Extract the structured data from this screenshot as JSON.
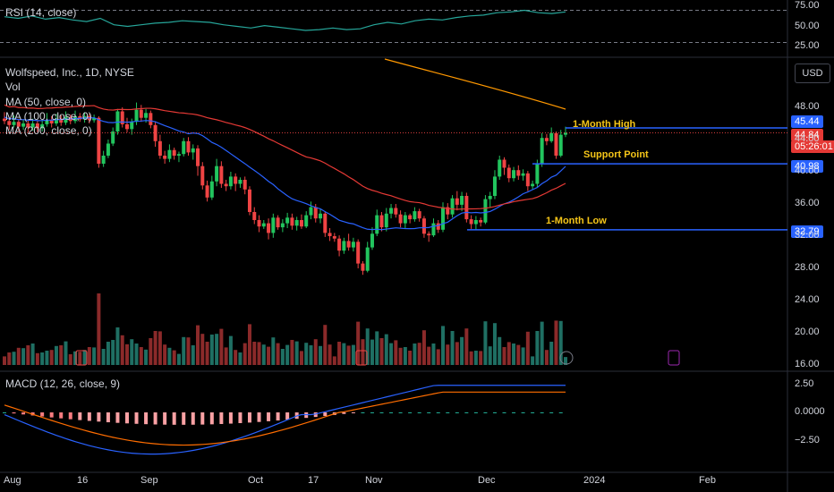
{
  "legend": {
    "rsi": "RSI (14, close)",
    "symbol": "Wolfspeed, Inc., 1D, NYSE",
    "vol": "Vol",
    "ma50": "MA (50, close, 0)",
    "ma100": "MA (100, close, 0)",
    "ma200": "MA (200, close, 0)",
    "macd": "MACD (12, 26, close, 9)"
  },
  "currency": "USD",
  "annotations": {
    "high": "1-Month High",
    "support": "Support Point",
    "low": "1-Month Low"
  },
  "tags": {
    "high": "45.44",
    "last": "44.84",
    "countdown": "05:26:01",
    "support": "40.98",
    "low": "32.79"
  },
  "colors": {
    "up": "#22c55e",
    "down": "#ef4444",
    "ma50": "#2962ff",
    "ma100": "#e53935",
    "ma200": "#ff9800",
    "rsi": "#26a69a",
    "level": "#2962ff",
    "annotation": "#f5c518"
  },
  "chart_data": {
    "type": "candlestick",
    "title": "Wolfspeed, Inc., 1D, NYSE",
    "x_ticks": [
      "Aug",
      "16",
      "Sep",
      "Oct",
      "17",
      "Nov",
      "Dec",
      "2024",
      "Feb"
    ],
    "price_ticks": [
      "48.00",
      "44.00",
      "40.00",
      "36.00",
      "32.00",
      "28.00",
      "24.00",
      "20.00",
      "16.00"
    ],
    "price_range": [
      16,
      52
    ],
    "rsi_ticks": [
      "75.00",
      "50.00",
      "25.00"
    ],
    "macd_ticks": [
      "2.50",
      "0.0000",
      "−2.50"
    ],
    "levels": {
      "month_high": 45.44,
      "support": 40.98,
      "month_low": 32.79,
      "last": 44.84
    },
    "candles": [
      [
        46.6,
        46.3,
        47.4,
        45.9
      ],
      [
        46.3,
        45.8,
        46.8,
        45.2
      ],
      [
        45.8,
        46.2,
        47.0,
        45.5
      ],
      [
        46.2,
        45.6,
        46.6,
        45.1
      ],
      [
        45.6,
        46.0,
        46.5,
        45.2
      ],
      [
        46.0,
        45.5,
        46.4,
        44.9
      ],
      [
        45.5,
        46.0,
        46.6,
        45.1
      ],
      [
        46.0,
        45.4,
        46.3,
        44.9
      ],
      [
        45.4,
        45.9,
        46.5,
        45.0
      ],
      [
        45.9,
        46.4,
        47.3,
        45.6
      ],
      [
        46.4,
        46.0,
        46.9,
        45.5
      ],
      [
        46.0,
        46.6,
        47.2,
        45.7
      ],
      [
        46.6,
        46.1,
        47.0,
        45.7
      ],
      [
        46.1,
        46.8,
        47.5,
        45.8
      ],
      [
        46.8,
        46.3,
        47.1,
        45.9
      ],
      [
        46.3,
        46.9,
        47.6,
        46.0
      ],
      [
        46.9,
        46.5,
        47.3,
        46.2
      ],
      [
        46.5,
        46.9,
        47.4,
        46.1
      ],
      [
        46.9,
        46.4,
        47.2,
        46.0
      ],
      [
        46.4,
        46.7,
        47.1,
        46.1
      ],
      [
        46.7,
        41.0,
        46.9,
        40.5
      ],
      [
        41.0,
        42.0,
        42.6,
        40.6
      ],
      [
        42.0,
        43.5,
        44.0,
        41.7
      ],
      [
        43.5,
        45.0,
        45.5,
        43.2
      ],
      [
        45.0,
        47.5,
        47.8,
        44.6
      ],
      [
        47.5,
        45.9,
        48.0,
        45.5
      ],
      [
        45.9,
        45.3,
        46.7,
        44.9
      ],
      [
        45.3,
        46.2,
        46.6,
        44.6
      ],
      [
        46.2,
        47.7,
        48.6,
        45.8
      ],
      [
        47.7,
        46.7,
        48.3,
        46.2
      ],
      [
        46.7,
        47.3,
        47.8,
        46.1
      ],
      [
        47.3,
        45.8,
        47.6,
        45.4
      ],
      [
        45.8,
        43.8,
        46.2,
        43.1
      ],
      [
        43.8,
        42.0,
        44.6,
        41.6
      ],
      [
        42.0,
        41.6,
        42.6,
        41.0
      ],
      [
        41.6,
        42.7,
        43.4,
        41.2
      ],
      [
        42.7,
        42.0,
        43.0,
        41.5
      ],
      [
        42.0,
        42.2,
        42.5,
        41.2
      ],
      [
        42.2,
        43.8,
        44.2,
        41.9
      ],
      [
        43.8,
        42.4,
        44.3,
        42.0
      ],
      [
        42.4,
        42.9,
        43.4,
        41.5
      ],
      [
        42.9,
        40.7,
        43.3,
        39.5
      ],
      [
        40.7,
        38.3,
        41.2,
        37.8
      ],
      [
        38.3,
        36.8,
        38.9,
        36.3
      ],
      [
        36.8,
        38.8,
        39.5,
        36.5
      ],
      [
        38.8,
        40.7,
        41.6,
        38.2
      ],
      [
        40.7,
        38.5,
        41.3,
        38.0
      ],
      [
        38.5,
        38.2,
        39.0,
        37.6
      ],
      [
        38.2,
        39.4,
        40.0,
        37.8
      ],
      [
        39.4,
        38.5,
        39.8,
        37.6
      ],
      [
        38.5,
        39.0,
        39.3,
        38.0
      ],
      [
        39.0,
        37.8,
        39.4,
        37.2
      ],
      [
        37.8,
        35.0,
        38.2,
        34.6
      ],
      [
        35.0,
        34.0,
        35.6,
        33.5
      ],
      [
        34.0,
        33.2,
        34.6,
        32.5
      ],
      [
        33.2,
        33.6,
        34.0,
        32.9
      ],
      [
        33.6,
        32.4,
        34.2,
        31.6
      ],
      [
        32.4,
        34.3,
        34.8,
        31.8
      ],
      [
        34.3,
        33.1,
        34.6,
        32.8
      ],
      [
        33.1,
        33.6,
        34.1,
        32.5
      ],
      [
        33.6,
        34.3,
        34.9,
        33.0
      ],
      [
        34.3,
        33.3,
        34.8,
        32.8
      ],
      [
        33.3,
        34.0,
        34.4,
        32.7
      ],
      [
        34.0,
        33.2,
        34.7,
        32.9
      ],
      [
        33.2,
        34.6,
        35.1,
        33.0
      ],
      [
        34.6,
        35.6,
        36.3,
        34.1
      ],
      [
        35.6,
        34.2,
        36.0,
        33.7
      ],
      [
        34.2,
        34.8,
        35.4,
        33.6
      ],
      [
        34.8,
        32.4,
        35.1,
        31.9
      ],
      [
        32.4,
        32.0,
        33.0,
        31.4
      ],
      [
        32.0,
        31.7,
        32.4,
        31.3
      ],
      [
        31.7,
        30.2,
        32.1,
        29.5
      ],
      [
        30.2,
        31.4,
        31.8,
        29.8
      ],
      [
        31.4,
        30.6,
        32.3,
        30.2
      ],
      [
        30.6,
        31.3,
        31.8,
        30.1
      ],
      [
        31.3,
        28.6,
        31.6,
        28.0
      ],
      [
        28.6,
        27.7,
        28.9,
        27.2
      ],
      [
        27.7,
        30.6,
        31.3,
        27.5
      ],
      [
        30.6,
        32.3,
        33.1,
        30.3
      ],
      [
        32.3,
        34.6,
        35.3,
        32.0
      ],
      [
        34.6,
        33.1,
        35.0,
        32.6
      ],
      [
        33.1,
        34.8,
        35.5,
        32.6
      ],
      [
        34.8,
        35.5,
        36.0,
        34.2
      ],
      [
        35.5,
        34.7,
        36.0,
        34.3
      ],
      [
        34.7,
        33.6,
        35.2,
        33.1
      ],
      [
        33.6,
        34.6,
        35.0,
        33.0
      ],
      [
        34.6,
        34.1,
        34.8,
        33.6
      ],
      [
        34.1,
        35.1,
        35.6,
        33.8
      ],
      [
        35.1,
        34.2,
        35.4,
        33.8
      ],
      [
        34.2,
        32.3,
        34.5,
        31.8
      ],
      [
        32.3,
        32.1,
        32.6,
        31.3
      ],
      [
        32.1,
        33.6,
        34.2,
        31.9
      ],
      [
        33.6,
        32.8,
        34.0,
        32.4
      ],
      [
        32.8,
        35.6,
        36.2,
        32.5
      ],
      [
        35.6,
        34.7,
        36.1,
        34.1
      ],
      [
        34.7,
        36.7,
        37.1,
        34.3
      ],
      [
        36.7,
        35.9,
        37.6,
        35.2
      ],
      [
        35.9,
        37.0,
        37.5,
        35.1
      ],
      [
        37.0,
        34.1,
        37.4,
        33.7
      ],
      [
        34.1,
        33.5,
        34.6,
        32.9
      ],
      [
        33.5,
        34.0,
        34.5,
        32.8
      ],
      [
        34.0,
        33.7,
        34.3,
        33.2
      ],
      [
        33.7,
        36.6,
        37.1,
        33.5
      ],
      [
        36.6,
        37.0,
        37.5,
        35.6
      ],
      [
        37.0,
        39.4,
        40.2,
        36.6
      ],
      [
        39.4,
        41.5,
        42.0,
        39.0
      ],
      [
        41.5,
        40.5,
        41.8,
        39.6
      ],
      [
        40.5,
        39.2,
        40.9,
        38.7
      ],
      [
        39.2,
        40.2,
        40.6,
        38.8
      ],
      [
        40.2,
        39.5,
        40.8,
        39.0
      ],
      [
        39.5,
        39.8,
        40.3,
        38.9
      ],
      [
        39.8,
        38.2,
        40.1,
        37.6
      ],
      [
        38.2,
        38.5,
        38.9,
        37.8
      ],
      [
        38.5,
        41.0,
        41.5,
        38.1
      ],
      [
        41.0,
        44.2,
        44.8,
        40.6
      ],
      [
        44.2,
        43.8,
        44.7,
        43.3
      ],
      [
        43.8,
        44.8,
        45.5,
        43.6
      ],
      [
        44.8,
        42.0,
        45.0,
        41.6
      ],
      [
        42.0,
        44.6,
        45.2,
        41.8
      ],
      [
        44.6,
        44.84,
        45.6,
        44.3
      ]
    ],
    "volume_note": "daily volume bars, teal = up day, red = down day",
    "rsi": [
      62,
      60,
      63,
      59,
      61,
      58,
      56,
      60,
      52,
      50,
      52,
      54,
      55,
      57,
      56,
      55,
      52,
      50,
      48,
      51,
      49,
      47,
      45,
      46,
      48,
      46,
      47,
      52,
      55,
      53,
      57,
      59,
      58,
      61,
      63,
      64,
      67,
      68,
      70,
      67,
      66,
      68
    ],
    "macd_hist_note": "histogram negative through Sep, crossing positive in Nov"
  }
}
